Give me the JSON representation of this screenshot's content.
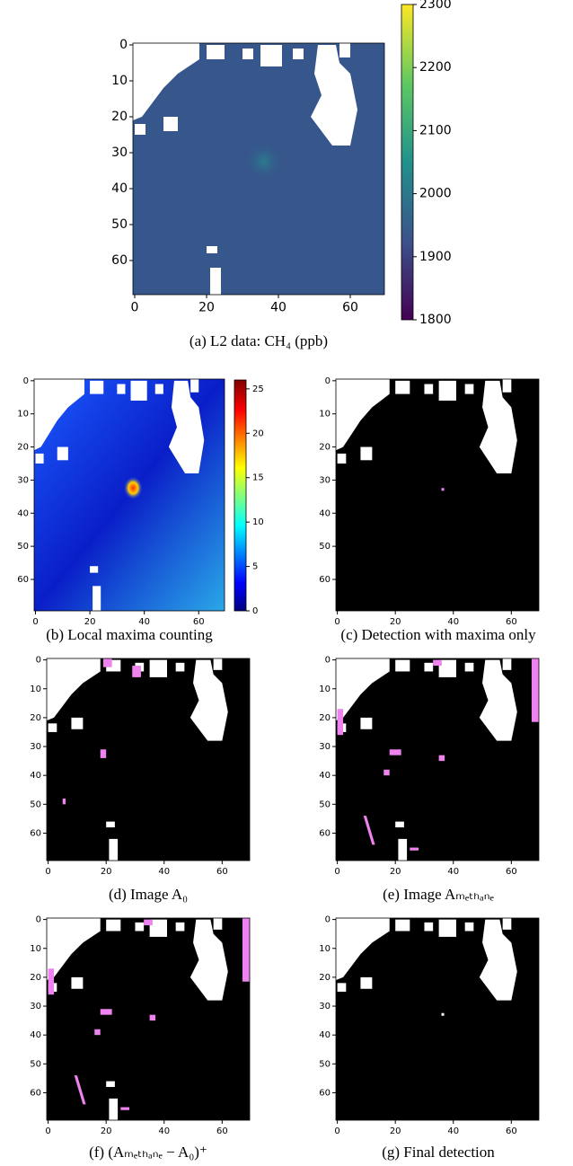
{
  "panels": [
    {
      "caption": "(a) L2 data: CH₄ (ppb)",
      "xticks": [
        0,
        20,
        40,
        60
      ],
      "yticks": [
        0,
        10,
        20,
        30,
        40,
        50,
        60
      ],
      "xlim": [
        -0.5,
        69.5
      ],
      "ylim": [
        69.5,
        -0.5
      ],
      "colorbar": {
        "lim": [
          1800,
          2300
        ],
        "ticks": [
          1800,
          1900,
          2000,
          2100,
          2200,
          2300
        ]
      }
    },
    {
      "caption": "(b) Local maxima counting",
      "xticks": [
        0,
        20,
        40,
        60
      ],
      "yticks": [
        0,
        10,
        20,
        30,
        40,
        50,
        60
      ],
      "xlim": [
        -0.5,
        69.5
      ],
      "ylim": [
        69.5,
        -0.5
      ],
      "colorbar": {
        "lim": [
          0,
          26
        ],
        "ticks": [
          0,
          5,
          10,
          15,
          20,
          25
        ]
      }
    },
    {
      "caption": "(c) Detection with maxima only",
      "xticks": [
        0,
        20,
        40,
        60
      ],
      "yticks": [
        0,
        10,
        20,
        30,
        40,
        50,
        60
      ],
      "xlim": [
        -0.5,
        69.5
      ],
      "ylim": [
        69.5,
        -0.5
      ]
    },
    {
      "caption": "(d) Image A₀",
      "xticks": [
        0,
        20,
        40,
        60
      ],
      "yticks": [
        0,
        10,
        20,
        30,
        40,
        50,
        60
      ],
      "xlim": [
        -0.5,
        69.5
      ],
      "ylim": [
        69.5,
        -0.5
      ]
    },
    {
      "caption": "(e) Image Aₘₑₜₕₐₙₑ",
      "xticks": [
        0,
        20,
        40,
        60
      ],
      "yticks": [
        0,
        10,
        20,
        30,
        40,
        50,
        60
      ],
      "xlim": [
        -0.5,
        69.5
      ],
      "ylim": [
        69.5,
        -0.5
      ]
    },
    {
      "caption": "(f) (Aₘₑₜₕₐₙₑ − A₀)⁺",
      "xticks": [
        0,
        20,
        40,
        60
      ],
      "yticks": [
        0,
        10,
        20,
        30,
        40,
        50,
        60
      ],
      "xlim": [
        -0.5,
        69.5
      ],
      "ylim": [
        69.5,
        -0.5
      ]
    },
    {
      "caption": "(g) Final detection",
      "xticks": [
        0,
        20,
        40,
        60
      ],
      "yticks": [
        0,
        10,
        20,
        30,
        40,
        50,
        60
      ],
      "xlim": [
        -0.5,
        69.5
      ],
      "ylim": [
        69.5,
        -0.5
      ]
    }
  ]
}
